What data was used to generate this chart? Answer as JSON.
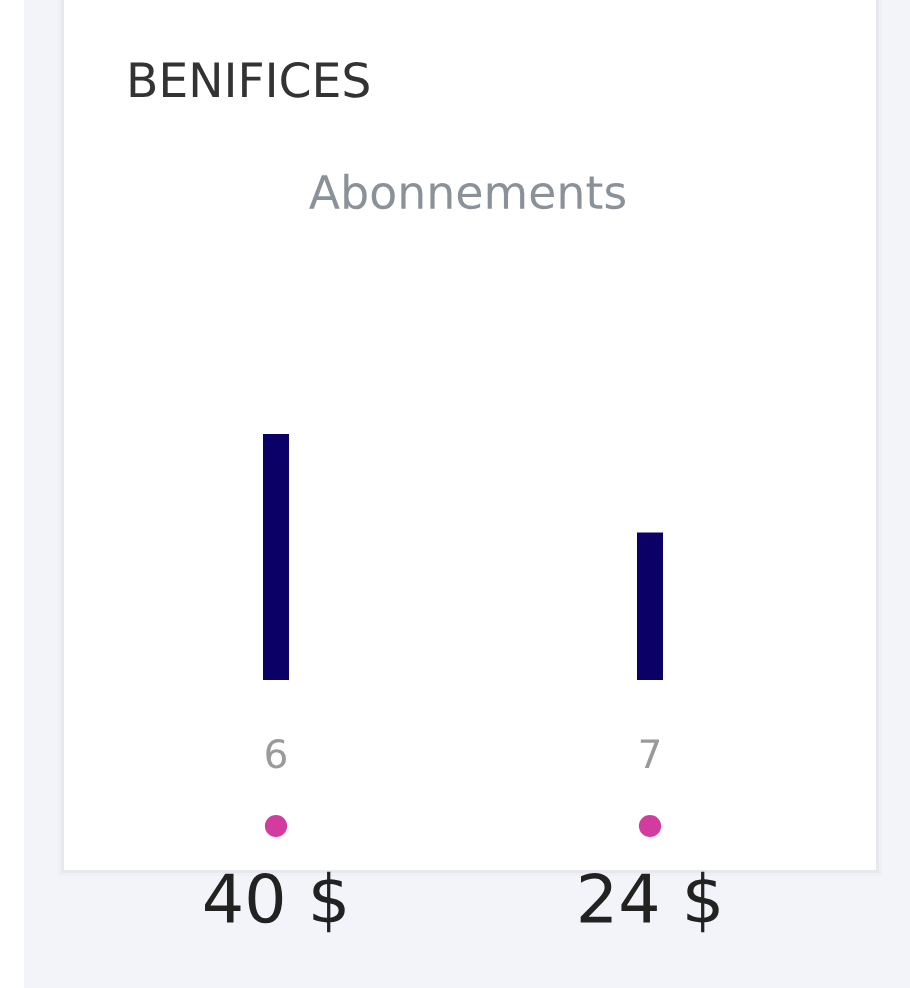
{
  "chart_data": {
    "type": "bar",
    "title": "BENIFICES",
    "subtitle": "Abonnements",
    "categories": [
      "6",
      "7"
    ],
    "values": [
      40,
      24
    ],
    "value_labels": [
      "40 $",
      "24 $"
    ],
    "color": "#0b0066"
  }
}
